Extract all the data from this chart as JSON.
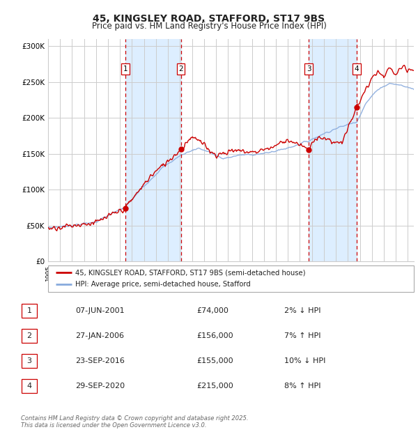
{
  "title_line1": "45, KINGSLEY ROAD, STAFFORD, ST17 9BS",
  "title_line2": "Price paid vs. HM Land Registry's House Price Index (HPI)",
  "yticks": [
    0,
    50000,
    100000,
    150000,
    200000,
    250000,
    300000
  ],
  "ytick_labels": [
    "£0",
    "£50K",
    "£100K",
    "£150K",
    "£200K",
    "£250K",
    "£300K"
  ],
  "hpi_color": "#88aadd",
  "price_color": "#cc0000",
  "sale_dates": [
    2001.44,
    2006.07,
    2016.73,
    2020.75
  ],
  "sale_prices": [
    74000,
    156000,
    155000,
    215000
  ],
  "sale_labels": [
    "1",
    "2",
    "3",
    "4"
  ],
  "vline_color": "#cc0000",
  "shade_color": "#ddeeff",
  "legend_line1": "45, KINGSLEY ROAD, STAFFORD, ST17 9BS (semi-detached house)",
  "legend_line2": "HPI: Average price, semi-detached house, Stafford",
  "table_entries": [
    [
      "1",
      "07-JUN-2001",
      "£74,000",
      "2% ↓ HPI"
    ],
    [
      "2",
      "27-JAN-2006",
      "£156,000",
      "7% ↑ HPI"
    ],
    [
      "3",
      "23-SEP-2016",
      "£155,000",
      "10% ↓ HPI"
    ],
    [
      "4",
      "29-SEP-2020",
      "£215,000",
      "8% ↑ HPI"
    ]
  ],
  "footer": "Contains HM Land Registry data © Crown copyright and database right 2025.\nThis data is licensed under the Open Government Licence v3.0.",
  "xmin": 1995.0,
  "xmax": 2025.5,
  "ymin": 0,
  "ymax": 310000,
  "background_color": "#ffffff",
  "grid_color": "#cccccc"
}
